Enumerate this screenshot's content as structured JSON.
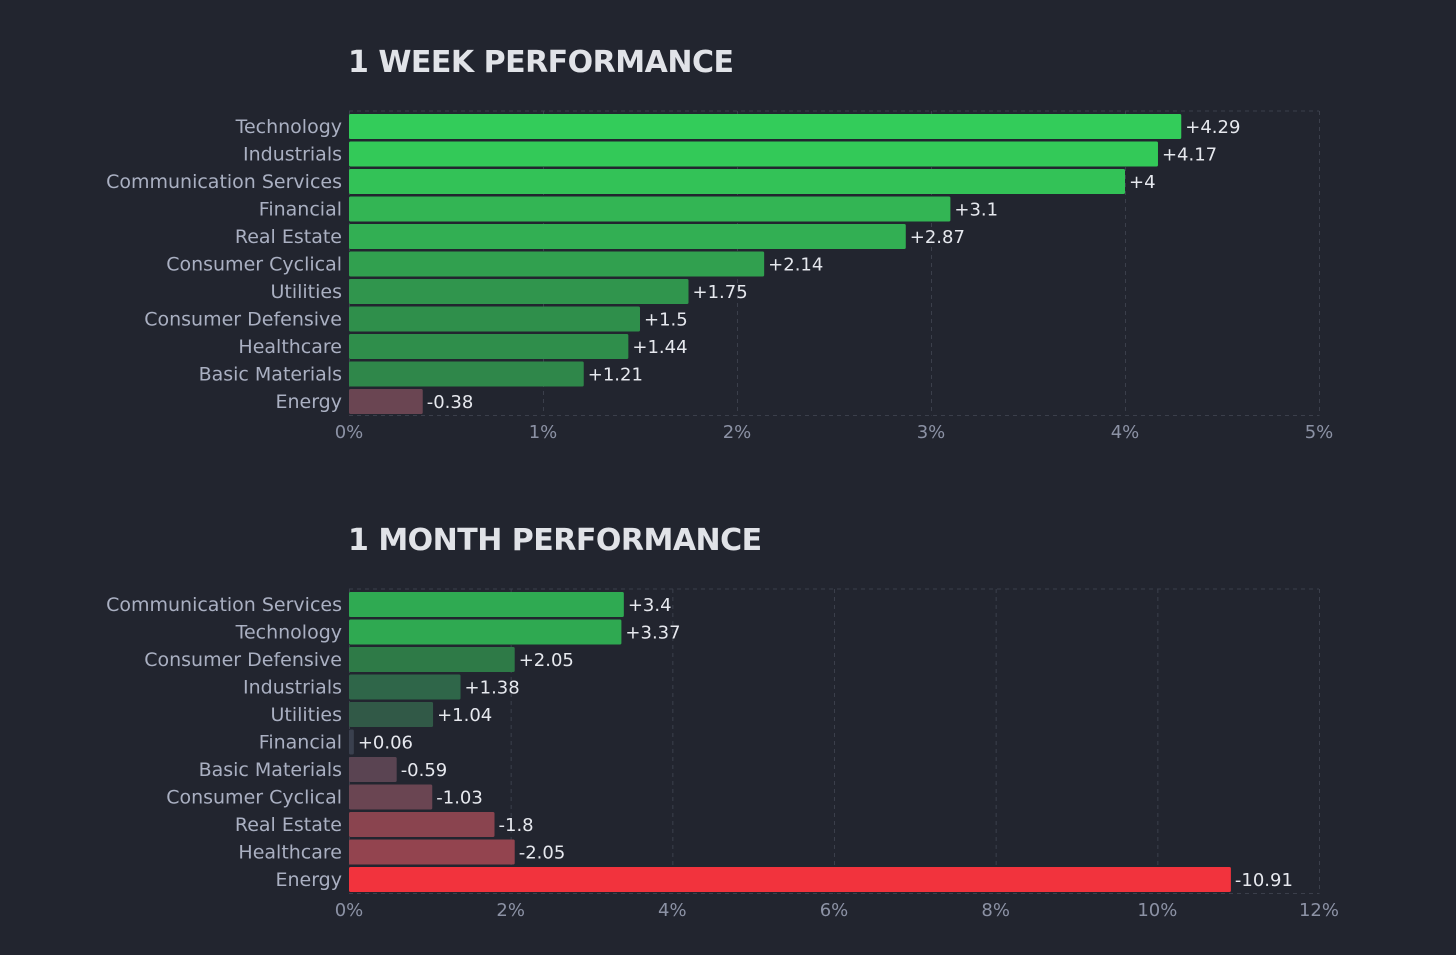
{
  "chart_data": [
    {
      "type": "bar",
      "orientation": "horizontal",
      "title": "1 WEEK PERFORMANCE",
      "categories": [
        "Technology",
        "Industrials",
        "Communication Services",
        "Financial",
        "Real Estate",
        "Consumer Cyclical",
        "Utilities",
        "Consumer Defensive",
        "Healthcare",
        "Basic Materials",
        "Energy"
      ],
      "values": [
        4.29,
        4.17,
        4,
        3.1,
        2.87,
        2.14,
        1.75,
        1.5,
        1.44,
        1.21,
        -0.38
      ],
      "value_labels": [
        "+4.29",
        "+4.17",
        "+4",
        "+3.1",
        "+2.87",
        "+2.14",
        "+1.75",
        "+1.5",
        "+1.44",
        "+1.21",
        "-0.38"
      ],
      "bar_colors": [
        "#33cc5a",
        "#33c958",
        "#33c257",
        "#33b554",
        "#32af53",
        "#31a04f",
        "#30954d",
        "#2f8f4b",
        "#2f8e4b",
        "#2f874a",
        "#6a4552"
      ],
      "xlim": [
        0,
        5
      ],
      "xticks": [
        0,
        1,
        2,
        3,
        4,
        5
      ],
      "xtick_labels": [
        "0%",
        "1%",
        "2%",
        "3%",
        "4%",
        "5%"
      ],
      "x_unit": "%",
      "grid": true
    },
    {
      "type": "bar",
      "orientation": "horizontal",
      "title": "1 MONTH PERFORMANCE",
      "categories": [
        "Communication Services",
        "Technology",
        "Consumer Defensive",
        "Industrials",
        "Utilities",
        "Financial",
        "Basic Materials",
        "Consumer Cyclical",
        "Real Estate",
        "Healthcare",
        "Energy"
      ],
      "values": [
        3.4,
        3.37,
        2.05,
        1.38,
        1.04,
        0.06,
        -0.59,
        -1.03,
        -1.8,
        -2.05,
        -10.91
      ],
      "value_labels": [
        "+3.4",
        "+3.37",
        "+2.05",
        "+1.38",
        "+1.04",
        "+0.06",
        "-0.59",
        "-1.03",
        "-1.8",
        "-2.05",
        "-10.91"
      ],
      "bar_colors": [
        "#2faa52",
        "#2fa951",
        "#2e7a47",
        "#2f6649",
        "#315947",
        "#3a404e",
        "#5a4452",
        "#6a4552",
        "#8a444f",
        "#93444f",
        "#f2333d"
      ],
      "xlim": [
        0,
        12
      ],
      "xticks": [
        0,
        2,
        4,
        6,
        8,
        10,
        12
      ],
      "xtick_labels": [
        "0%",
        "2%",
        "4%",
        "6%",
        "8%",
        "10%",
        "12%"
      ],
      "x_unit": "%",
      "grid": true
    }
  ]
}
